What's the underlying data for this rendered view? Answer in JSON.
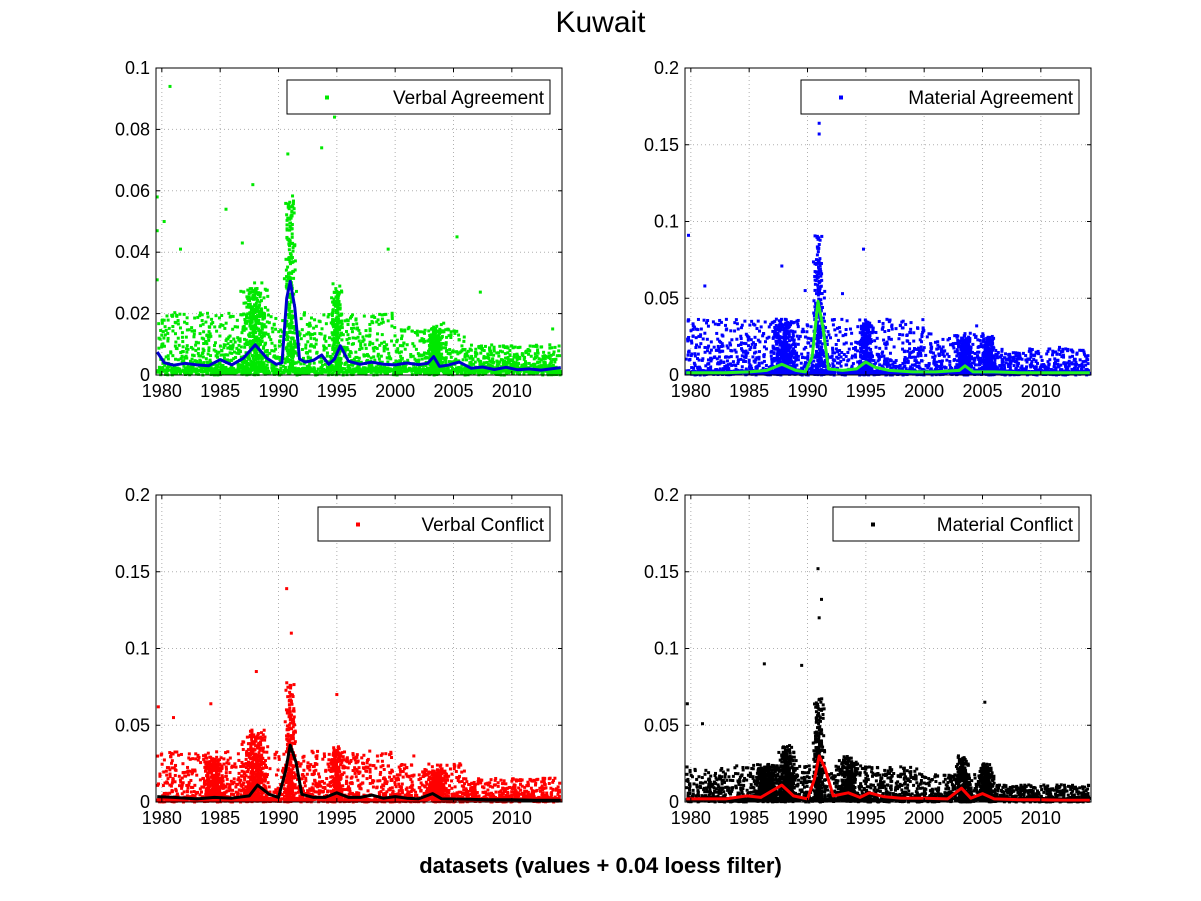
{
  "figure": {
    "title": "Kuwait",
    "xlabel": "datasets (values + 0.04 loess filter)"
  },
  "chart_data": [
    {
      "type": "scatter",
      "legend_label": "Verbal Agreement",
      "legend_position": "top-right",
      "grid": true,
      "xlim": [
        1979.5,
        2014.3
      ],
      "ylim": [
        0,
        0.1
      ],
      "x_ticks": [
        1980,
        1985,
        1990,
        1995,
        2000,
        2005,
        2010
      ],
      "y_ticks": [
        "0",
        "0.02",
        "0.04",
        "0.06",
        "0.08",
        "0.1"
      ],
      "y_tick_values": [
        0,
        0.02,
        0.04,
        0.06,
        0.08,
        0.1
      ],
      "point_color": "#00e800",
      "line_color": "#0000cc",
      "points": {
        "baseline": 0.004,
        "spread": 0.012,
        "bursts": [
          [
            1988,
            0.012,
            0.8,
            0.03
          ],
          [
            1991.0,
            0.025,
            0.35,
            0.09
          ],
          [
            1995,
            0.012,
            0.3,
            0.035
          ],
          [
            2003.5,
            0.006,
            0.5,
            0.02
          ]
        ],
        "outliers": [
          [
            1980.7,
            0.094
          ],
          [
            1981.6,
            0.041
          ],
          [
            1980.2,
            0.05
          ],
          [
            1979.6,
            0.058
          ],
          [
            1979.6,
            0.047
          ],
          [
            1979.6,
            0.031
          ],
          [
            1987.8,
            0.062
          ],
          [
            1985.5,
            0.054
          ],
          [
            1993.7,
            0.074
          ],
          [
            1994.8,
            0.084
          ],
          [
            1986.9,
            0.043
          ],
          [
            1990.8,
            0.072
          ],
          [
            1999.4,
            0.041
          ],
          [
            2005.3,
            0.045
          ],
          [
            2007.3,
            0.027
          ],
          [
            2013.5,
            0.015
          ]
        ]
      },
      "smooth": {
        "x": [
          1979.6,
          1980.2,
          1981,
          1982,
          1983,
          1984,
          1985,
          1986,
          1987,
          1988,
          1989,
          1989.8,
          1990.3,
          1990.7,
          1991.0,
          1991.4,
          1991.8,
          1992.3,
          1993,
          1993.7,
          1994.3,
          1994.8,
          1995.3,
          1996,
          1997,
          1998,
          1999,
          2000,
          2001,
          2002,
          2002.8,
          2003.3,
          2003.8,
          2004.5,
          2005.5,
          2006.5,
          2007.5,
          2008.5,
          2009.5,
          2010.5,
          2011.5,
          2012.5,
          2013.5,
          2014.2
        ],
        "y": [
          0.0075,
          0.004,
          0.0032,
          0.0038,
          0.0033,
          0.003,
          0.005,
          0.0033,
          0.0055,
          0.0098,
          0.0055,
          0.0035,
          0.004,
          0.025,
          0.0305,
          0.022,
          0.0052,
          0.0042,
          0.0048,
          0.0065,
          0.0035,
          0.0052,
          0.0095,
          0.0045,
          0.0035,
          0.0042,
          0.0035,
          0.0033,
          0.0039,
          0.0034,
          0.0038,
          0.006,
          0.0028,
          0.0032,
          0.0042,
          0.0022,
          0.0026,
          0.0018,
          0.0025,
          0.0017,
          0.002,
          0.0016,
          0.0021,
          0.0024
        ]
      }
    },
    {
      "type": "scatter",
      "legend_label": "Material Agreement",
      "legend_position": "top-right",
      "grid": true,
      "xlim": [
        1979.5,
        2014.3
      ],
      "ylim": [
        0,
        0.2
      ],
      "x_ticks": [
        1980,
        1985,
        1990,
        1995,
        2000,
        2005,
        2010
      ],
      "y_ticks": [
        "0",
        "0.05",
        "0.1",
        "0.15",
        "0.2"
      ],
      "y_tick_values": [
        0,
        0.05,
        0.1,
        0.15,
        0.2
      ],
      "point_color": "#0000ff",
      "line_color": "#22ee22",
      "points": {
        "baseline": 0.004,
        "spread": 0.022,
        "bursts": [
          [
            1988,
            0.015,
            0.8,
            0.07
          ],
          [
            1991.0,
            0.04,
            0.35,
            0.16
          ],
          [
            1995,
            0.015,
            0.4,
            0.08
          ],
          [
            2003.5,
            0.01,
            0.5,
            0.04
          ],
          [
            2005.5,
            0.01,
            0.4,
            0.035
          ]
        ],
        "outliers": [
          [
            1979.8,
            0.091
          ],
          [
            1991.0,
            0.164
          ],
          [
            1991.0,
            0.157
          ],
          [
            1987.8,
            0.071
          ],
          [
            1994.8,
            0.082
          ],
          [
            1981.2,
            0.058
          ],
          [
            1989.8,
            0.055
          ],
          [
            1993.0,
            0.053
          ],
          [
            2004.5,
            0.032
          ],
          [
            2011.6,
            0.018
          ],
          [
            2013.7,
            0.015
          ]
        ]
      },
      "smooth": {
        "x": [
          1979.6,
          1981,
          1983,
          1985,
          1986.5,
          1987.8,
          1989,
          1989.8,
          1990.4,
          1990.9,
          1991.3,
          1991.8,
          1993,
          1994.2,
          1995.0,
          1995.8,
          1997,
          1999,
          2001,
          2003,
          2003.5,
          2004.2,
          2006,
          2008,
          2010,
          2012,
          2014.2
        ],
        "y": [
          0.0015,
          0.0015,
          0.0015,
          0.002,
          0.003,
          0.007,
          0.003,
          0.002,
          0.012,
          0.048,
          0.032,
          0.004,
          0.003,
          0.004,
          0.0085,
          0.005,
          0.003,
          0.002,
          0.002,
          0.003,
          0.006,
          0.002,
          0.002,
          0.0015,
          0.0015,
          0.0015,
          0.0015
        ]
      }
    },
    {
      "type": "scatter",
      "legend_label": "Verbal Conflict",
      "legend_position": "top-right",
      "grid": true,
      "xlim": [
        1979.5,
        2014.3
      ],
      "ylim": [
        0,
        0.2
      ],
      "x_ticks": [
        1980,
        1985,
        1990,
        1995,
        2000,
        2005,
        2010
      ],
      "y_ticks": [
        "0",
        "0.05",
        "0.1",
        "0.15",
        "0.2"
      ],
      "y_tick_values": [
        0,
        0.05,
        0.1,
        0.15,
        0.2
      ],
      "point_color": "#ff0000",
      "line_color": "#000000",
      "points": {
        "baseline": 0.004,
        "spread": 0.02,
        "bursts": [
          [
            1984.5,
            0.012,
            0.6,
            0.06
          ],
          [
            1988,
            0.02,
            0.8,
            0.085
          ],
          [
            1991.0,
            0.035,
            0.35,
            0.14
          ],
          [
            1995,
            0.015,
            0.4,
            0.07
          ],
          [
            2003.5,
            0.008,
            0.6,
            0.03
          ]
        ],
        "outliers": [
          [
            1979.7,
            0.062
          ],
          [
            1981.0,
            0.055
          ],
          [
            1984.2,
            0.064
          ],
          [
            1988.1,
            0.085
          ],
          [
            1990.7,
            0.139
          ],
          [
            1991.1,
            0.11
          ],
          [
            1995.0,
            0.07
          ],
          [
            2001.6,
            0.03
          ],
          [
            2012.8,
            0.012
          ]
        ]
      },
      "smooth": {
        "x": [
          1979.6,
          1981,
          1983,
          1984.5,
          1986,
          1987.5,
          1988.2,
          1989.2,
          1990.0,
          1990.6,
          1991.0,
          1991.5,
          1992.0,
          1993,
          1994,
          1995.0,
          1996,
          1997,
          1998,
          1999,
          2000,
          2001,
          2002,
          2003.2,
          2004,
          2006,
          2008,
          2010,
          2012,
          2014.2
        ],
        "y": [
          0.0035,
          0.003,
          0.002,
          0.003,
          0.0025,
          0.004,
          0.011,
          0.005,
          0.003,
          0.02,
          0.037,
          0.026,
          0.005,
          0.003,
          0.003,
          0.006,
          0.003,
          0.003,
          0.0045,
          0.0025,
          0.0035,
          0.0025,
          0.002,
          0.0055,
          0.002,
          0.0018,
          0.0015,
          0.0015,
          0.0012,
          0.0012
        ]
      }
    },
    {
      "type": "scatter",
      "legend_label": "Material Conflict",
      "legend_position": "top-right",
      "grid": true,
      "xlim": [
        1979.5,
        2014.3
      ],
      "ylim": [
        0,
        0.2
      ],
      "x_ticks": [
        1980,
        1985,
        1990,
        1995,
        2000,
        2005,
        2010
      ],
      "y_ticks": [
        "0",
        "0.05",
        "0.1",
        "0.15",
        "0.2"
      ],
      "y_tick_values": [
        0,
        0.05,
        0.1,
        0.15,
        0.2
      ],
      "point_color": "#000000",
      "line_color": "#ff0000",
      "points": {
        "baseline": 0.004,
        "spread": 0.014,
        "bursts": [
          [
            1986.5,
            0.01,
            0.8,
            0.09
          ],
          [
            1988.2,
            0.015,
            0.6,
            0.07
          ],
          [
            1991.0,
            0.03,
            0.35,
            0.15
          ],
          [
            1993.5,
            0.012,
            0.6,
            0.05
          ],
          [
            2003.3,
            0.012,
            0.4,
            0.045
          ],
          [
            2005.3,
            0.01,
            0.4,
            0.06
          ]
        ],
        "outliers": [
          [
            1979.7,
            0.064
          ],
          [
            1981.0,
            0.051
          ],
          [
            1986.3,
            0.09
          ],
          [
            1989.5,
            0.089
          ],
          [
            1990.9,
            0.152
          ],
          [
            1991.2,
            0.132
          ],
          [
            1991.0,
            0.12
          ],
          [
            2005.2,
            0.065
          ],
          [
            2012.5,
            0.01
          ]
        ]
      },
      "smooth": {
        "x": [
          1979.6,
          1981,
          1983,
          1984.8,
          1986,
          1987.8,
          1988.8,
          1990.0,
          1990.6,
          1991.0,
          1991.5,
          1992.2,
          1993.5,
          1994.5,
          1995.3,
          1996.5,
          1998,
          2000,
          2002,
          2003.2,
          2004.0,
          2005.0,
          2006,
          2008,
          2010,
          2012,
          2014.2
        ],
        "y": [
          0.002,
          0.002,
          0.002,
          0.004,
          0.003,
          0.011,
          0.004,
          0.002,
          0.015,
          0.03,
          0.022,
          0.004,
          0.006,
          0.003,
          0.006,
          0.0035,
          0.0025,
          0.0025,
          0.002,
          0.009,
          0.0025,
          0.0055,
          0.002,
          0.0015,
          0.0015,
          0.0012,
          0.0012
        ]
      }
    }
  ]
}
